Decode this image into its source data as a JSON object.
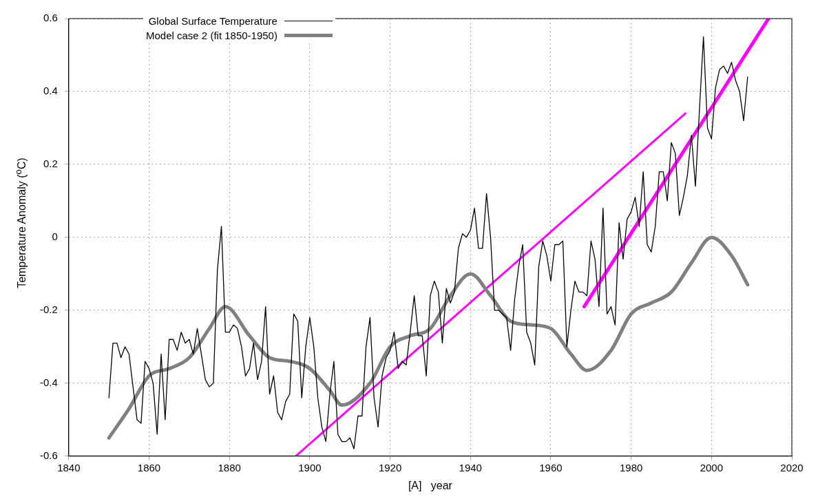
{
  "chart_data": {
    "type": "line",
    "xlabel": "[A]   year",
    "ylabel": "Temperature Anomaly ($^{o}$C)",
    "xlim": [
      1840,
      2020
    ],
    "xticks": [
      1840,
      1860,
      1880,
      1900,
      1920,
      1940,
      1960,
      1980,
      2000,
      2020
    ],
    "ylim": [
      -0.6,
      0.6
    ],
    "yticks": [
      -0.6,
      -0.4,
      -0.2,
      0,
      0.2,
      0.4,
      0.6
    ],
    "grid": true,
    "legend": "top left",
    "marker": "none",
    "line_style": "solid",
    "x": [
      1850,
      1851,
      1852,
      1853,
      1854,
      1855,
      1856,
      1857,
      1858,
      1859,
      1860,
      1861,
      1862,
      1863,
      1864,
      1865,
      1866,
      1867,
      1868,
      1869,
      1870,
      1871,
      1872,
      1873,
      1874,
      1875,
      1876,
      1877,
      1878,
      1879,
      1880,
      1881,
      1882,
      1883,
      1884,
      1885,
      1886,
      1887,
      1888,
      1889,
      1890,
      1891,
      1892,
      1893,
      1894,
      1895,
      1896,
      1897,
      1898,
      1899,
      1900,
      1901,
      1902,
      1903,
      1904,
      1905,
      1906,
      1907,
      1908,
      1909,
      1910,
      1911,
      1912,
      1913,
      1914,
      1915,
      1916,
      1917,
      1918,
      1919,
      1920,
      1921,
      1922,
      1923,
      1924,
      1925,
      1926,
      1927,
      1928,
      1929,
      1930,
      1931,
      1932,
      1933,
      1934,
      1935,
      1936,
      1937,
      1938,
      1939,
      1940,
      1941,
      1942,
      1943,
      1944,
      1945,
      1946,
      1947,
      1948,
      1949,
      1950,
      1951,
      1952,
      1953,
      1954,
      1955,
      1956,
      1957,
      1958,
      1959,
      1960,
      1961,
      1962,
      1963,
      1964,
      1965,
      1966,
      1967,
      1968,
      1969,
      1970,
      1971,
      1972,
      1973,
      1974,
      1975,
      1976,
      1977,
      1978,
      1979,
      1980,
      1981,
      1982,
      1983,
      1984,
      1985,
      1986,
      1987,
      1988,
      1989,
      1990,
      1991,
      1992,
      1993,
      1994,
      1995,
      1996,
      1997,
      1998,
      1999,
      2000,
      2001,
      2002,
      2003,
      2004,
      2005,
      2006,
      2007,
      2008,
      2009
    ],
    "series": [
      {
        "name": "Global Surface Temperature",
        "color": "#000000",
        "values": [
          -0.44,
          -0.29,
          -0.29,
          -0.33,
          -0.3,
          -0.32,
          -0.41,
          -0.5,
          -0.51,
          -0.34,
          -0.36,
          -0.4,
          -0.54,
          -0.32,
          -0.5,
          -0.28,
          -0.28,
          -0.31,
          -0.26,
          -0.29,
          -0.28,
          -0.32,
          -0.25,
          -0.32,
          -0.39,
          -0.41,
          -0.4,
          -0.09,
          0.03,
          -0.26,
          -0.26,
          -0.24,
          -0.25,
          -0.3,
          -0.38,
          -0.36,
          -0.29,
          -0.39,
          -0.34,
          -0.19,
          -0.43,
          -0.38,
          -0.48,
          -0.5,
          -0.45,
          -0.43,
          -0.21,
          -0.23,
          -0.44,
          -0.3,
          -0.22,
          -0.3,
          -0.44,
          -0.52,
          -0.56,
          -0.43,
          -0.34,
          -0.54,
          -0.56,
          -0.56,
          -0.55,
          -0.58,
          -0.49,
          -0.49,
          -0.3,
          -0.22,
          -0.44,
          -0.52,
          -0.38,
          -0.33,
          -0.31,
          -0.26,
          -0.36,
          -0.34,
          -0.35,
          -0.26,
          -0.16,
          -0.27,
          -0.27,
          -0.38,
          -0.16,
          -0.12,
          -0.15,
          -0.29,
          -0.14,
          -0.18,
          -0.15,
          -0.03,
          0.01,
          0.0,
          0.02,
          0.08,
          -0.03,
          -0.03,
          0.12,
          0.0,
          -0.2,
          -0.2,
          -0.21,
          -0.22,
          -0.31,
          -0.17,
          -0.08,
          -0.02,
          -0.26,
          -0.29,
          -0.35,
          -0.08,
          -0.01,
          -0.05,
          -0.12,
          -0.02,
          -0.02,
          -0.01,
          -0.3,
          -0.2,
          -0.12,
          -0.15,
          -0.15,
          -0.16,
          -0.01,
          -0.06,
          -0.19,
          0.08,
          -0.21,
          -0.19,
          -0.24,
          0.04,
          -0.06,
          0.05,
          0.07,
          0.11,
          0.03,
          0.18,
          -0.02,
          -0.04,
          0.03,
          0.18,
          0.18,
          0.1,
          0.26,
          0.23,
          0.06,
          0.11,
          0.17,
          0.28,
          0.14,
          0.35,
          0.55,
          0.3,
          0.27,
          0.41,
          0.46,
          0.47,
          0.45,
          0.48,
          0.43,
          0.4,
          0.32,
          0.44
        ]
      },
      {
        "name": "Model case 2 (fit 1850-1950)",
        "color": "#808080",
        "x": [
          1850,
          1855,
          1860,
          1865,
          1870,
          1875,
          1879,
          1885,
          1890,
          1895,
          1900,
          1905,
          1908,
          1915,
          1920,
          1925,
          1930,
          1935,
          1940,
          1945,
          1950,
          1955,
          1960,
          1965,
          1969,
          1975,
          1980,
          1985,
          1990,
          1995,
          2000,
          2005,
          2009
        ],
        "values": [
          -0.55,
          -0.47,
          -0.38,
          -0.36,
          -0.33,
          -0.25,
          -0.19,
          -0.27,
          -0.33,
          -0.34,
          -0.36,
          -0.42,
          -0.46,
          -0.4,
          -0.3,
          -0.27,
          -0.25,
          -0.16,
          -0.1,
          -0.16,
          -0.23,
          -0.24,
          -0.25,
          -0.32,
          -0.365,
          -0.31,
          -0.21,
          -0.18,
          -0.15,
          -0.07,
          0.0,
          -0.05,
          -0.13
        ]
      },
      {
        "color": "#ff00ff",
        "x": [
          1896.5,
          1993.5
        ],
        "values": [
          -0.6,
          0.34
        ]
      },
      {
        "color": "#ff00ff",
        "x": [
          1968.3,
          2014.2
        ],
        "values": [
          -0.19,
          0.6
        ]
      }
    ]
  }
}
